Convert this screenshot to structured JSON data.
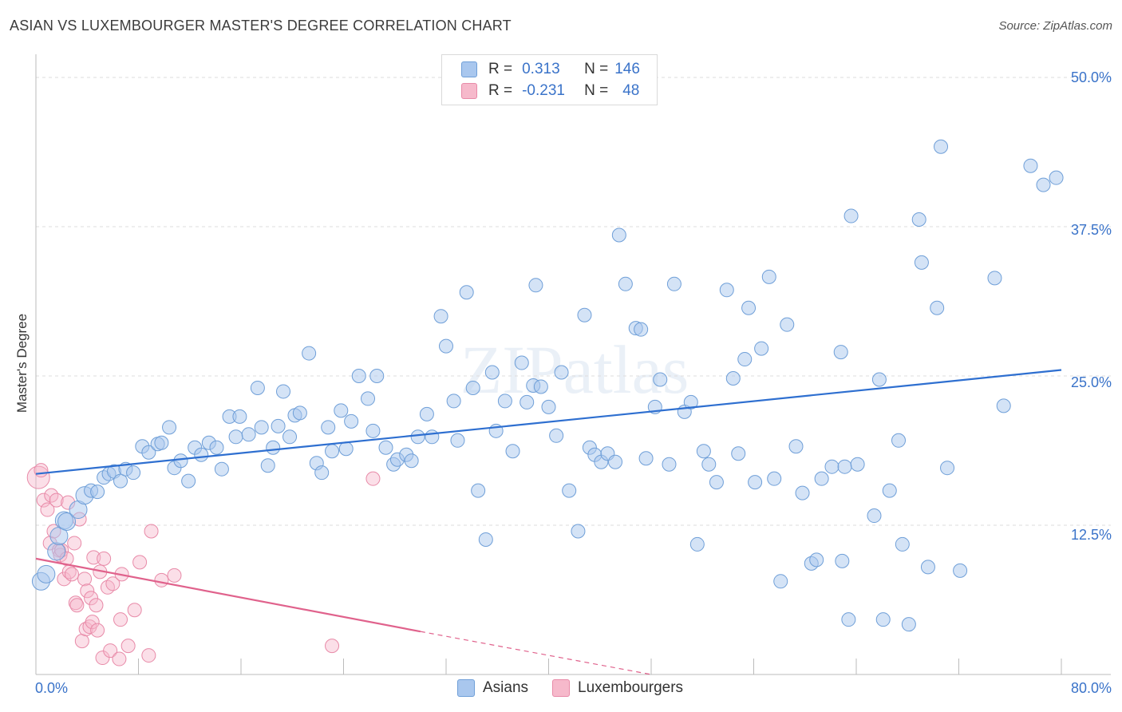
{
  "title": "ASIAN VS LUXEMBOURGER MASTER'S DEGREE CORRELATION CHART",
  "source": "Source: ZipAtlas.com",
  "watermark": "ZIPatlas",
  "legend": {
    "rows": [
      {
        "r_label": "R =",
        "r_value": "0.313",
        "n_label": "N =",
        "n_value": "146"
      },
      {
        "r_label": "R =",
        "r_value": "-0.231",
        "n_label": "N =",
        "n_value": "48"
      }
    ]
  },
  "bottom_legend": [
    "Asians",
    "Luxembourgers"
  ],
  "colors": {
    "asian_fill": "#a9c7ee",
    "asian_stroke": "#6f9fd8",
    "asian_line": "#2e6fd0",
    "lux_fill": "#f6b9cb",
    "lux_stroke": "#e88aa8",
    "lux_line": "#e0628c",
    "tick_text": "#3a73c9",
    "grid": "#dddddd"
  },
  "chart_data": {
    "type": "scatter",
    "title": "ASIAN VS LUXEMBOURGER MASTER'S DEGREE CORRELATION CHART",
    "xlabel": "",
    "ylabel": "Master's Degree",
    "xlim": [
      0,
      80
    ],
    "ylim": [
      0,
      50
    ],
    "x_tick_labels": [
      "0.0%",
      "80.0%"
    ],
    "y_ticks": [
      12.5,
      25.0,
      37.5,
      50.0
    ],
    "y_tick_labels": [
      "12.5%",
      "25.0%",
      "37.5%",
      "50.0%"
    ],
    "series": [
      {
        "name": "Asians",
        "r": 0.313,
        "n": 146,
        "trend": {
          "x": [
            0,
            80
          ],
          "y": [
            16.8,
            25.5
          ]
        },
        "points": [
          [
            0.4,
            7.8
          ],
          [
            0.8,
            8.4
          ],
          [
            1.6,
            10.3
          ],
          [
            1.8,
            11.6
          ],
          [
            2.2,
            12.9
          ],
          [
            2.4,
            12.8
          ],
          [
            3.3,
            13.8
          ],
          [
            3.8,
            15.0
          ],
          [
            4.3,
            15.4
          ],
          [
            4.8,
            15.3
          ],
          [
            5.3,
            16.5
          ],
          [
            5.7,
            16.8
          ],
          [
            6.1,
            17.0
          ],
          [
            6.6,
            16.2
          ],
          [
            7.0,
            17.2
          ],
          [
            7.6,
            16.9
          ],
          [
            8.3,
            19.1
          ],
          [
            8.8,
            18.6
          ],
          [
            9.5,
            19.3
          ],
          [
            9.8,
            19.4
          ],
          [
            10.4,
            20.7
          ],
          [
            10.8,
            17.3
          ],
          [
            11.3,
            17.9
          ],
          [
            11.9,
            16.2
          ],
          [
            12.4,
            19.0
          ],
          [
            12.9,
            18.4
          ],
          [
            13.5,
            19.4
          ],
          [
            14.1,
            19.0
          ],
          [
            14.5,
            17.2
          ],
          [
            15.1,
            21.6
          ],
          [
            15.6,
            19.9
          ],
          [
            15.9,
            21.6
          ],
          [
            16.6,
            20.1
          ],
          [
            17.3,
            24.0
          ],
          [
            17.6,
            20.7
          ],
          [
            18.1,
            17.5
          ],
          [
            18.5,
            19.0
          ],
          [
            18.9,
            20.8
          ],
          [
            19.3,
            23.7
          ],
          [
            19.8,
            19.9
          ],
          [
            20.2,
            21.7
          ],
          [
            20.6,
            21.9
          ],
          [
            21.3,
            26.9
          ],
          [
            21.9,
            17.7
          ],
          [
            22.3,
            16.9
          ],
          [
            22.8,
            20.7
          ],
          [
            23.1,
            18.7
          ],
          [
            23.8,
            22.1
          ],
          [
            24.2,
            18.9
          ],
          [
            24.6,
            21.2
          ],
          [
            25.2,
            25.0
          ],
          [
            25.9,
            23.1
          ],
          [
            26.3,
            20.4
          ],
          [
            26.6,
            25.0
          ],
          [
            27.3,
            19.0
          ],
          [
            27.9,
            17.6
          ],
          [
            28.2,
            18.0
          ],
          [
            28.9,
            18.4
          ],
          [
            29.3,
            17.9
          ],
          [
            29.8,
            19.9
          ],
          [
            30.5,
            21.8
          ],
          [
            30.9,
            19.9
          ],
          [
            31.6,
            30.0
          ],
          [
            32.0,
            27.5
          ],
          [
            32.6,
            22.9
          ],
          [
            32.9,
            19.6
          ],
          [
            33.6,
            32.0
          ],
          [
            34.1,
            24.0
          ],
          [
            34.5,
            15.4
          ],
          [
            35.1,
            11.3
          ],
          [
            35.6,
            25.3
          ],
          [
            35.9,
            20.4
          ],
          [
            36.6,
            22.9
          ],
          [
            37.2,
            18.7
          ],
          [
            37.9,
            26.1
          ],
          [
            38.3,
            22.8
          ],
          [
            38.8,
            24.2
          ],
          [
            39.0,
            32.6
          ],
          [
            39.4,
            24.1
          ],
          [
            40.0,
            22.4
          ],
          [
            40.6,
            20.0
          ],
          [
            41.0,
            25.3
          ],
          [
            41.6,
            15.4
          ],
          [
            42.3,
            12.0
          ],
          [
            42.8,
            30.1
          ],
          [
            43.2,
            19.0
          ],
          [
            43.6,
            18.4
          ],
          [
            44.1,
            17.8
          ],
          [
            44.6,
            18.5
          ],
          [
            45.2,
            17.8
          ],
          [
            45.5,
            36.8
          ],
          [
            46.0,
            32.7
          ],
          [
            46.8,
            29.0
          ],
          [
            47.2,
            28.9
          ],
          [
            47.6,
            18.1
          ],
          [
            48.3,
            22.4
          ],
          [
            48.7,
            24.7
          ],
          [
            49.4,
            17.6
          ],
          [
            49.8,
            32.7
          ],
          [
            50.6,
            22.0
          ],
          [
            51.1,
            22.8
          ],
          [
            51.6,
            10.9
          ],
          [
            52.1,
            18.7
          ],
          [
            52.5,
            17.6
          ],
          [
            53.1,
            16.1
          ],
          [
            53.9,
            32.2
          ],
          [
            54.4,
            24.8
          ],
          [
            54.8,
            18.5
          ],
          [
            55.3,
            26.4
          ],
          [
            55.6,
            30.7
          ],
          [
            56.1,
            16.1
          ],
          [
            56.6,
            27.3
          ],
          [
            57.2,
            33.3
          ],
          [
            57.6,
            16.4
          ],
          [
            58.1,
            7.8
          ],
          [
            58.6,
            29.3
          ],
          [
            59.3,
            19.1
          ],
          [
            59.8,
            15.2
          ],
          [
            60.5,
            9.3
          ],
          [
            60.9,
            9.6
          ],
          [
            61.3,
            16.4
          ],
          [
            62.1,
            17.4
          ],
          [
            62.8,
            27.0
          ],
          [
            62.9,
            9.5
          ],
          [
            63.1,
            17.4
          ],
          [
            63.4,
            4.6
          ],
          [
            63.6,
            38.4
          ],
          [
            64.1,
            17.6
          ],
          [
            65.4,
            13.3
          ],
          [
            65.8,
            24.7
          ],
          [
            66.1,
            4.6
          ],
          [
            66.6,
            15.4
          ],
          [
            67.3,
            19.6
          ],
          [
            67.6,
            10.9
          ],
          [
            68.1,
            4.2
          ],
          [
            68.9,
            38.1
          ],
          [
            69.1,
            34.5
          ],
          [
            69.6,
            9.0
          ],
          [
            70.3,
            30.7
          ],
          [
            70.6,
            44.2
          ],
          [
            71.1,
            17.3
          ],
          [
            72.1,
            8.7
          ],
          [
            74.8,
            33.2
          ],
          [
            75.5,
            22.5
          ],
          [
            77.6,
            42.6
          ],
          [
            78.6,
            41.0
          ],
          [
            79.6,
            41.6
          ]
        ]
      },
      {
        "name": "Luxembourgers",
        "r": -0.231,
        "n": 48,
        "trend": {
          "x": [
            0,
            30
          ],
          "y": [
            9.7,
            3.6
          ]
        },
        "trend_dashed": {
          "x": [
            30,
            48
          ],
          "y": [
            3.6,
            0.0
          ]
        },
        "points": [
          [
            0.2,
            16.5
          ],
          [
            0.4,
            17.1
          ],
          [
            0.6,
            14.6
          ],
          [
            0.9,
            13.8
          ],
          [
            1.1,
            11.0
          ],
          [
            1.2,
            15.0
          ],
          [
            1.4,
            12.0
          ],
          [
            1.6,
            14.6
          ],
          [
            1.8,
            10.4
          ],
          [
            1.9,
            10.0
          ],
          [
            2.0,
            10.4
          ],
          [
            2.2,
            8.0
          ],
          [
            2.4,
            9.7
          ],
          [
            2.5,
            14.4
          ],
          [
            2.6,
            8.6
          ],
          [
            2.8,
            8.4
          ],
          [
            3.0,
            11.0
          ],
          [
            3.1,
            6.0
          ],
          [
            3.2,
            5.8
          ],
          [
            3.4,
            13.0
          ],
          [
            3.6,
            2.8
          ],
          [
            3.8,
            8.0
          ],
          [
            3.9,
            3.8
          ],
          [
            4.0,
            7.0
          ],
          [
            4.2,
            4.0
          ],
          [
            4.3,
            6.4
          ],
          [
            4.4,
            4.4
          ],
          [
            4.5,
            9.8
          ],
          [
            4.7,
            5.8
          ],
          [
            4.8,
            3.7
          ],
          [
            5.0,
            8.6
          ],
          [
            5.2,
            1.4
          ],
          [
            5.3,
            9.7
          ],
          [
            5.6,
            7.3
          ],
          [
            5.8,
            2.0
          ],
          [
            6.0,
            7.6
          ],
          [
            6.5,
            1.3
          ],
          [
            6.6,
            4.6
          ],
          [
            6.7,
            8.4
          ],
          [
            7.2,
            2.4
          ],
          [
            7.7,
            5.4
          ],
          [
            8.1,
            9.4
          ],
          [
            8.8,
            1.6
          ],
          [
            9.0,
            12.0
          ],
          [
            9.8,
            7.9
          ],
          [
            10.8,
            8.3
          ],
          [
            23.1,
            2.4
          ],
          [
            26.3,
            16.4
          ]
        ]
      }
    ]
  }
}
